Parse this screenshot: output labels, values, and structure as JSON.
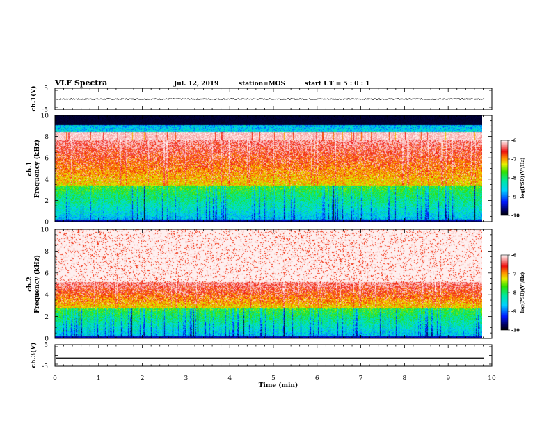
{
  "header": {
    "title": "VLF Spectra",
    "date": "Jul. 12, 2019",
    "station": "station=MOS",
    "start": "start UT =  5 : 0 : 1"
  },
  "chart_data": [
    {
      "type": "line",
      "ylabel": "ch.1(V)",
      "xlim": [
        0,
        10
      ],
      "ylim": [
        -5,
        5
      ],
      "yticks": [
        "5",
        "-5"
      ],
      "series": [
        {
          "level": 0,
          "noise": 0.25
        }
      ]
    },
    {
      "type": "heatmap",
      "ylabel_line1": "ch.1",
      "ylabel_line2": "Frequency (kHz)",
      "xlim": [
        0,
        9.83
      ],
      "ylim": [
        0,
        10
      ],
      "yticks": [
        "0",
        "2",
        "4",
        "6",
        "8",
        "10"
      ],
      "profile": {
        "low_band_top_khz": 3.4,
        "red_band_top_khz": 7.7,
        "blank_above_khz": 9.1
      },
      "colorbar": {
        "label": "log(PSD)(V²/Hz)",
        "ticks": [
          "-6",
          "-7",
          "-8",
          "-9",
          "-10"
        ],
        "range": [
          -10,
          -6
        ]
      }
    },
    {
      "type": "heatmap",
      "ylabel_line1": "ch.2",
      "ylabel_line2": "Frequency (kHz)",
      "xlim": [
        0,
        9.83
      ],
      "ylim": [
        0,
        10
      ],
      "yticks": [
        "0",
        "2",
        "4",
        "6",
        "8",
        "10"
      ],
      "profile": {
        "low_band_top_khz": 2.8,
        "red_band_top_khz": 5.2,
        "blank_above_khz": 10
      },
      "colorbar": {
        "label": "log(PSD)(V²/Hz)",
        "ticks": [
          "-6",
          "-7",
          "-8",
          "-9",
          "-10"
        ],
        "range": [
          -10,
          -6
        ]
      }
    },
    {
      "type": "line",
      "ylabel": "ch.3(V)",
      "xlim": [
        0,
        10
      ],
      "ylim": [
        -5,
        5
      ],
      "yticks": [
        "5",
        "-5"
      ],
      "series": [
        {
          "level": -1.2,
          "noise": 0
        }
      ]
    }
  ],
  "xaxis": {
    "label": "Time (min)",
    "ticks": [
      "0",
      "1",
      "2",
      "3",
      "4",
      "5",
      "6",
      "7",
      "8",
      "9",
      "10"
    ]
  }
}
